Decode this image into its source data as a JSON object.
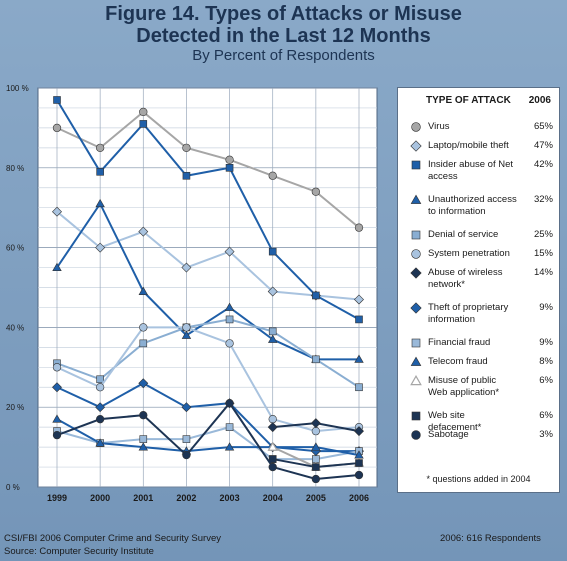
{
  "title_line1": "Figure 14. Types of Attacks or Misuse",
  "title_line2": "Detected in the Last 12 Months",
  "subtitle": "By Percent of Respondents",
  "legend": {
    "header_type": "TYPE OF ATTACK",
    "header_year": "2006",
    "note": "* questions added in 2004"
  },
  "footer": {
    "source1": "CSI/FBI 2006 Computer Crime and Security Survey",
    "source2": "Source: Computer Security Institute",
    "respondents": "2006: 616 Respondents"
  },
  "chart_data": {
    "type": "line",
    "x": [
      "1999",
      "2000",
      "2001",
      "2002",
      "2003",
      "2004",
      "2005",
      "2006"
    ],
    "y_ticks": [
      "100 %",
      "80 %",
      "60 %",
      "40 %",
      "20 %",
      "0 %"
    ],
    "ylim": [
      0,
      100
    ],
    "grid": true,
    "series": [
      {
        "name": "Virus",
        "value_2006": "65%",
        "color": "#a6a6a6",
        "marker": "circle",
        "values": [
          90,
          85,
          94,
          85,
          82,
          78,
          74,
          65
        ]
      },
      {
        "name": "Laptop/mobile theft",
        "value_2006": "47%",
        "color": "#a9c3df",
        "marker": "diamond",
        "values": [
          69,
          60,
          64,
          55,
          59,
          49,
          48,
          47
        ]
      },
      {
        "name": "Insider abuse of Net access",
        "value_2006": "42%",
        "color": "#1f5fa8",
        "marker": "square",
        "values": [
          97,
          79,
          91,
          78,
          80,
          59,
          48,
          42
        ]
      },
      {
        "name": "Unauthorized access to information",
        "value_2006": "32%",
        "color": "#1f5fa8",
        "marker": "triangle",
        "values": [
          55,
          71,
          49,
          38,
          45,
          37,
          32,
          32
        ]
      },
      {
        "name": "Denial of service",
        "value_2006": "25%",
        "color": "#8aaed2",
        "marker": "square",
        "values": [
          31,
          27,
          36,
          40,
          42,
          39,
          32,
          25
        ]
      },
      {
        "name": "System penetration",
        "value_2006": "15%",
        "color": "#a9c3df",
        "marker": "circle",
        "values": [
          30,
          25,
          40,
          40,
          36,
          17,
          14,
          15
        ]
      },
      {
        "name": "Abuse of wireless network*",
        "value_2006": "14%",
        "color": "#1d3453",
        "marker": "diamond",
        "values": [
          null,
          null,
          null,
          null,
          null,
          15,
          16,
          14
        ]
      },
      {
        "name": "Theft of proprietary information",
        "value_2006": "9%",
        "color": "#1f5fa8",
        "marker": "diamond",
        "values": [
          25,
          20,
          26,
          20,
          21,
          10,
          9,
          9
        ]
      },
      {
        "name": "Financial fraud",
        "value_2006": "9%",
        "color": "#9ab9d9",
        "marker": "square",
        "values": [
          14,
          11,
          12,
          12,
          15,
          7,
          7,
          9
        ]
      },
      {
        "name": "Telecom fraud",
        "value_2006": "8%",
        "color": "#1f5fa8",
        "marker": "triangle",
        "values": [
          17,
          11,
          10,
          9,
          10,
          10,
          10,
          8
        ]
      },
      {
        "name": "Misuse of public Web application*",
        "value_2006": "6%",
        "color": "#a6a6a6",
        "marker": "triangle-open",
        "values": [
          null,
          null,
          null,
          null,
          null,
          10,
          5,
          6
        ]
      },
      {
        "name": "Web site defacement*",
        "value_2006": "6%",
        "color": "#1d3453",
        "marker": "square",
        "values": [
          null,
          null,
          null,
          null,
          null,
          7,
          5,
          6
        ]
      },
      {
        "name": "Sabotage",
        "value_2006": "3%",
        "color": "#1d3453",
        "marker": "circle",
        "values": [
          13,
          17,
          18,
          8,
          21,
          5,
          2,
          3
        ]
      }
    ]
  }
}
